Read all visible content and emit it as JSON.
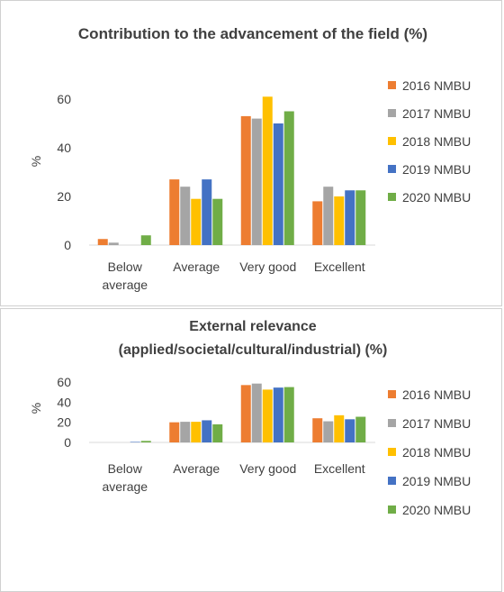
{
  "chart_data": [
    {
      "type": "bar",
      "title": "Contribution to the advancement of the field  (%)",
      "ylabel": "%",
      "ylim": [
        0,
        60
      ],
      "yticks": [
        0,
        20,
        40,
        60
      ],
      "categories": [
        [
          "Below",
          "average"
        ],
        [
          "Average"
        ],
        [
          "Very good"
        ],
        [
          "Excellent"
        ]
      ],
      "series": [
        {
          "name": "2016 NMBU",
          "color": "#ed7d31",
          "values": [
            2.5,
            27,
            53,
            18
          ]
        },
        {
          "name": "2017 NMBU",
          "color": "#a5a5a5",
          "values": [
            1,
            24,
            52,
            24
          ]
        },
        {
          "name": "2018 NMBU",
          "color": "#ffc000",
          "values": [
            0,
            19,
            61,
            20
          ]
        },
        {
          "name": "2019 NMBU",
          "color": "#4472c4",
          "values": [
            0,
            27,
            50,
            22.5
          ]
        },
        {
          "name": "2020 NMBU",
          "color": "#70ad47",
          "values": [
            4,
            19,
            55,
            22.5
          ]
        }
      ],
      "legend_position": "right",
      "grid": false
    },
    {
      "type": "bar",
      "title": [
        "External relevance",
        "(applied/societal/cultural/industrial)  (%)"
      ],
      "ylabel": "%",
      "ylim": [
        0,
        60
      ],
      "yticks": [
        0,
        20,
        40,
        60
      ],
      "categories": [
        [
          "Below",
          "average"
        ],
        [
          "Average"
        ],
        [
          "Very good"
        ],
        [
          "Excellent"
        ]
      ],
      "series": [
        {
          "name": "2016 NMBU",
          "color": "#ed7d31",
          "values": [
            0,
            20,
            57,
            24
          ]
        },
        {
          "name": "2017 NMBU",
          "color": "#a5a5a5",
          "values": [
            0,
            20.5,
            58.5,
            21
          ]
        },
        {
          "name": "2018 NMBU",
          "color": "#ffc000",
          "values": [
            0,
            20.5,
            52.5,
            27
          ]
        },
        {
          "name": "2019 NMBU",
          "color": "#4472c4",
          "values": [
            0.5,
            22,
            54.5,
            23
          ]
        },
        {
          "name": "2020 NMBU",
          "color": "#70ad47",
          "values": [
            1.5,
            18,
            55,
            25.5
          ]
        }
      ],
      "legend_position": "right",
      "grid": false
    }
  ]
}
